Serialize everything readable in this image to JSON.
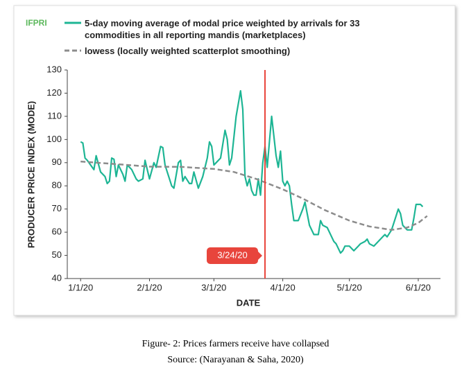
{
  "brand": "IFPRI",
  "caption": "Figure- 2: Prices farmers receive have collapsed",
  "source": "Source: (Narayanan & Saha, 2020)",
  "chart_data": {
    "type": "line",
    "x_label": "DATE",
    "y_label": "PRODUCER PRICE INDEX (MODE)",
    "xlim": [
      "2019-12-26",
      "2020-06-11"
    ],
    "xticks": [
      {
        "value": "2020-01-01",
        "label": "1/1/20"
      },
      {
        "value": "2020-02-01",
        "label": "2/1/20"
      },
      {
        "value": "2020-03-01",
        "label": "3/1/20"
      },
      {
        "value": "2020-04-01",
        "label": "4/1/20"
      },
      {
        "value": "2020-05-01",
        "label": "5/1/20"
      },
      {
        "value": "2020-06-01",
        "label": "6/1/20"
      }
    ],
    "ylim": [
      40,
      130
    ],
    "yticks": [
      40,
      50,
      60,
      70,
      80,
      90,
      100,
      110,
      120,
      130
    ],
    "grid": false,
    "annotation": {
      "label": "3/24/20",
      "x": "2020-03-24",
      "color": "#e8453c"
    },
    "series": [
      {
        "name": "5-day moving average of modal price weighted by arrivals for 33 commodities in all reporting mandis (marketplaces)",
        "color": "#1db594",
        "dash": false,
        "x": [
          "2020-01-01",
          "2020-01-02",
          "2020-01-03",
          "2020-01-04",
          "2020-01-07",
          "2020-01-08",
          "2020-01-10",
          "2020-01-12",
          "2020-01-13",
          "2020-01-14",
          "2020-01-15",
          "2020-01-16",
          "2020-01-17",
          "2020-01-18",
          "2020-01-20",
          "2020-01-21",
          "2020-01-22",
          "2020-01-24",
          "2020-01-26",
          "2020-01-27",
          "2020-01-29",
          "2020-01-30",
          "2020-02-01",
          "2020-02-03",
          "2020-02-04",
          "2020-02-06",
          "2020-02-07",
          "2020-02-08",
          "2020-02-09",
          "2020-02-11",
          "2020-02-12",
          "2020-02-14",
          "2020-02-15",
          "2020-02-16",
          "2020-02-17",
          "2020-02-19",
          "2020-02-20",
          "2020-02-21",
          "2020-02-23",
          "2020-02-25",
          "2020-02-27",
          "2020-02-28",
          "2020-02-29",
          "2020-03-01",
          "2020-03-02",
          "2020-03-04",
          "2020-03-06",
          "2020-03-07",
          "2020-03-08",
          "2020-03-09",
          "2020-03-11",
          "2020-03-13",
          "2020-03-14",
          "2020-03-15",
          "2020-03-16",
          "2020-03-17",
          "2020-03-18",
          "2020-03-19",
          "2020-03-20",
          "2020-03-21",
          "2020-03-22",
          "2020-03-23",
          "2020-03-24",
          "2020-03-25",
          "2020-03-26",
          "2020-03-27",
          "2020-03-29",
          "2020-03-30",
          "2020-03-31",
          "2020-04-01",
          "2020-04-02",
          "2020-04-03",
          "2020-04-04",
          "2020-04-05",
          "2020-04-06",
          "2020-04-08",
          "2020-04-10",
          "2020-04-11",
          "2020-04-12",
          "2020-04-13",
          "2020-04-15",
          "2020-04-17",
          "2020-04-18",
          "2020-04-19",
          "2020-04-21",
          "2020-04-23",
          "2020-04-24",
          "2020-04-25",
          "2020-04-27",
          "2020-04-28",
          "2020-04-29",
          "2020-05-01",
          "2020-05-03",
          "2020-05-05",
          "2020-05-06",
          "2020-05-08",
          "2020-05-09",
          "2020-05-10",
          "2020-05-12",
          "2020-05-14",
          "2020-05-16",
          "2020-05-17",
          "2020-05-18",
          "2020-05-20",
          "2020-05-22",
          "2020-05-23",
          "2020-05-24",
          "2020-05-25",
          "2020-05-27",
          "2020-05-29",
          "2020-05-30",
          "2020-05-31",
          "2020-06-02",
          "2020-06-03"
        ],
        "values": [
          99,
          98.5,
          92,
          91,
          87,
          93,
          86,
          84,
          81,
          82,
          92,
          91.5,
          84,
          89,
          85,
          82,
          89,
          87,
          83,
          82,
          83,
          91,
          83,
          90,
          88,
          97,
          96.5,
          89,
          86,
          80,
          79,
          90,
          91,
          82,
          84,
          81,
          81,
          86,
          79,
          84,
          92,
          99,
          97,
          89,
          90,
          92,
          104,
          100,
          89,
          92,
          110,
          121,
          113,
          84,
          80,
          83,
          78,
          76,
          76,
          83,
          76,
          90,
          97,
          88,
          99,
          110,
          93,
          88,
          95,
          82,
          80,
          82,
          80,
          72,
          65,
          65,
          70,
          73,
          68,
          63,
          59,
          59,
          65,
          63,
          62,
          58,
          56,
          55,
          51,
          52,
          54,
          54,
          52,
          54,
          55,
          56,
          57,
          55,
          54,
          56,
          58,
          59,
          58,
          61,
          67,
          70,
          68,
          63,
          61,
          61,
          66,
          72,
          72,
          71
        ]
      },
      {
        "name": "lowess (locally weighted scatterplot smoothing)",
        "color": "#8c8c8c",
        "dash": true,
        "x": [
          "2020-01-01",
          "2020-01-15",
          "2020-02-01",
          "2020-02-15",
          "2020-03-01",
          "2020-03-10",
          "2020-03-20",
          "2020-04-01",
          "2020-04-10",
          "2020-04-20",
          "2020-05-01",
          "2020-05-10",
          "2020-05-20",
          "2020-05-27",
          "2020-06-01",
          "2020-06-05"
        ],
        "values": [
          90.5,
          89.5,
          88.3,
          88.2,
          87.3,
          86,
          83,
          78.5,
          74.5,
          69.5,
          65,
          62.5,
          61,
          62,
          64,
          67
        ]
      }
    ]
  }
}
